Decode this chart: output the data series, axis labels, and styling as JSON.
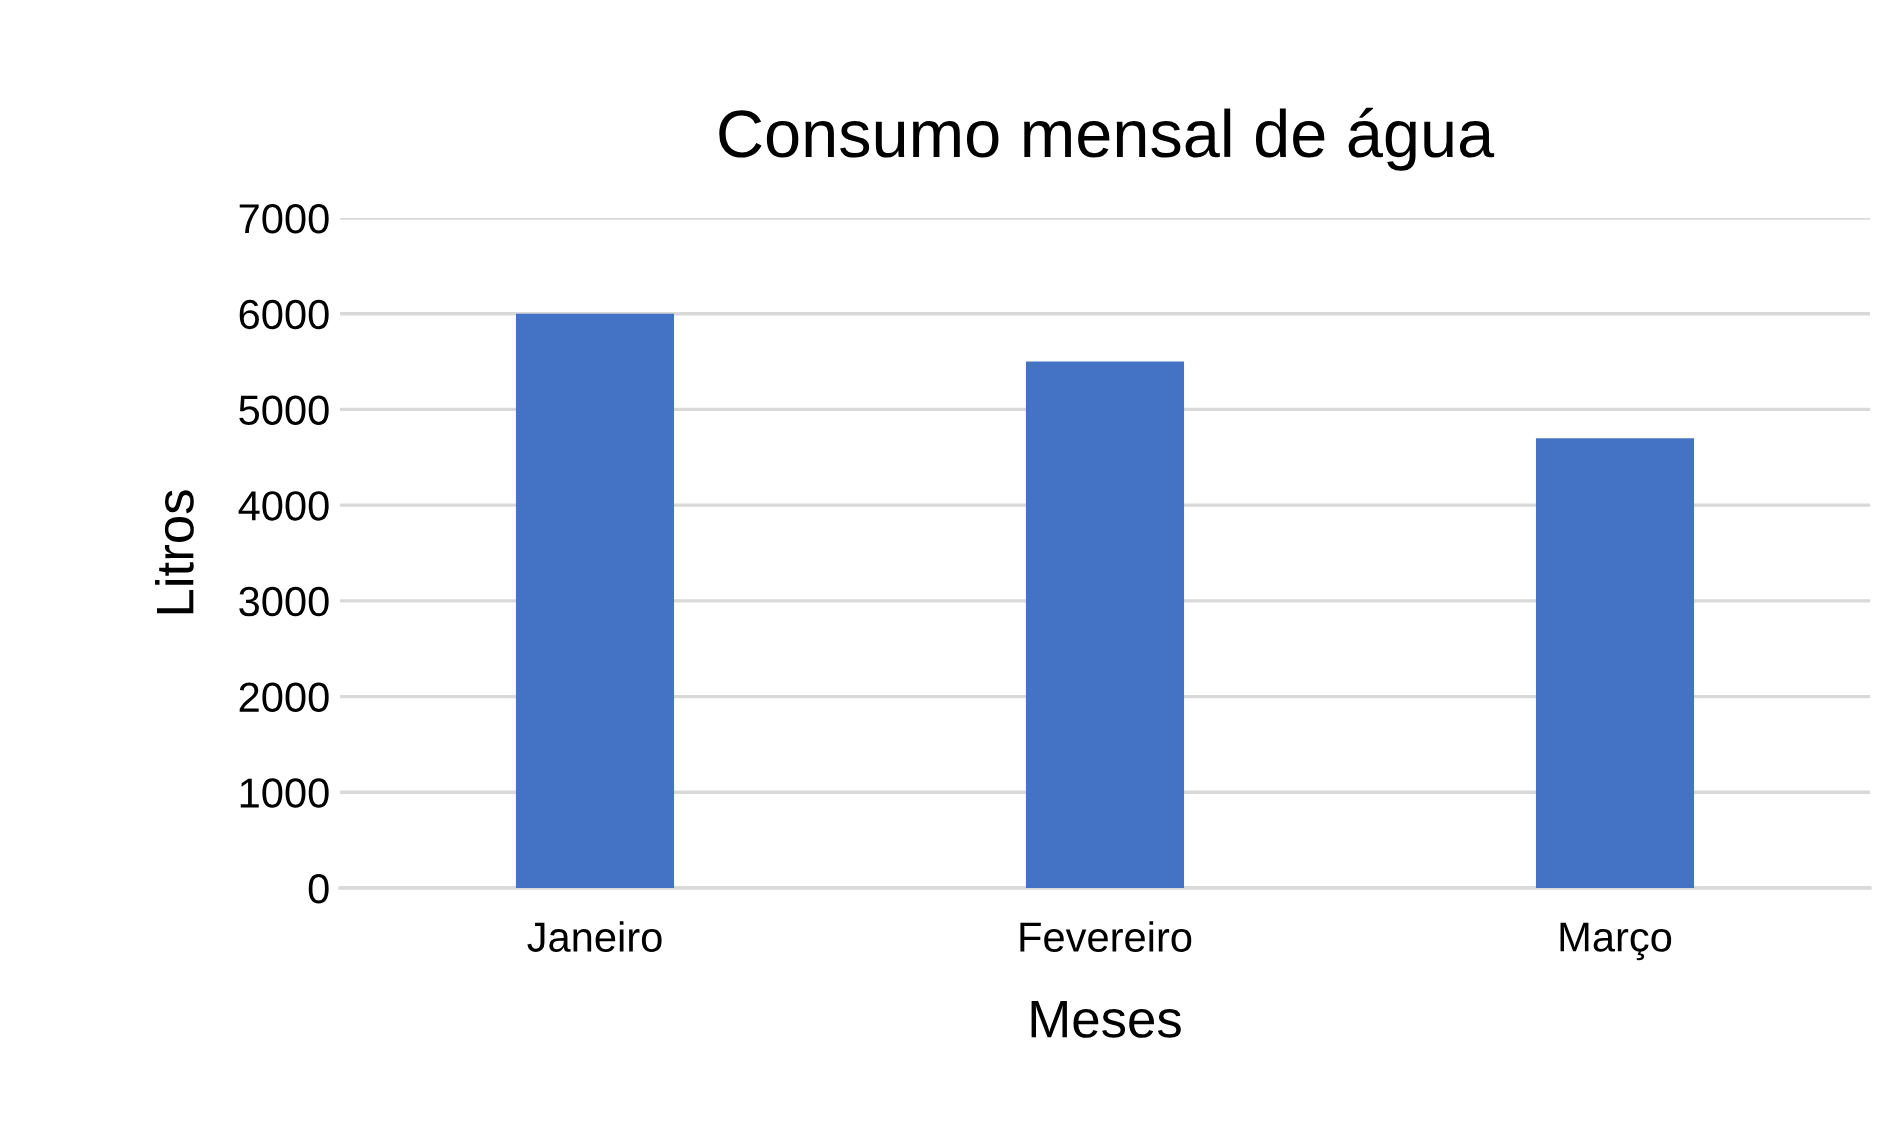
{
  "chart_data": {
    "type": "bar",
    "title": "Consumo mensal de água",
    "xlabel": "Meses",
    "ylabel": "Litros",
    "categories": [
      "Janeiro",
      "Fevereiro",
      "Março"
    ],
    "values": [
      6000,
      5500,
      4700
    ],
    "color": "#4472c4",
    "ylim": [
      0,
      7000
    ],
    "yticks": [
      0,
      1000,
      2000,
      3000,
      4000,
      5000,
      6000,
      7000
    ],
    "grid": "y",
    "legend": false
  }
}
